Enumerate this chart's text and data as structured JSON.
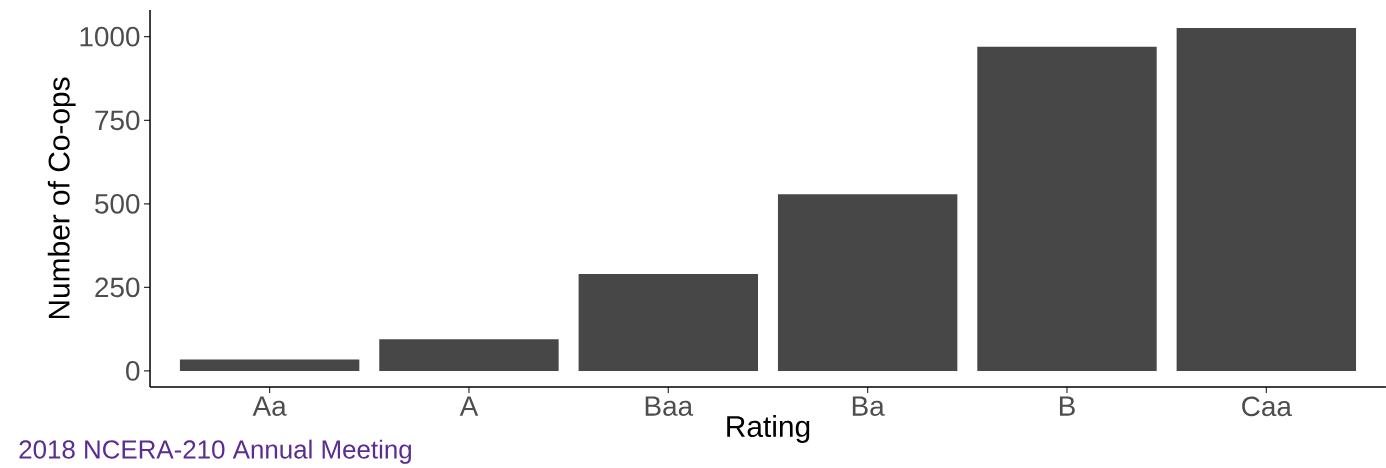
{
  "chart_data": {
    "type": "bar",
    "xlabel": "Rating",
    "ylabel": "Number of Co-ops",
    "categories": [
      "Aa",
      "A",
      "Baa",
      "Ba",
      "B",
      "Caa"
    ],
    "values": [
      34,
      95,
      290,
      529,
      970,
      1026
    ],
    "color": "#474747",
    "ylim": [
      -48,
      1080
    ],
    "yticks": [
      0,
      250,
      500,
      750,
      1000
    ],
    "grid": false,
    "annotations": [
      "2018 NCERA-210 Annual Meeting"
    ]
  }
}
